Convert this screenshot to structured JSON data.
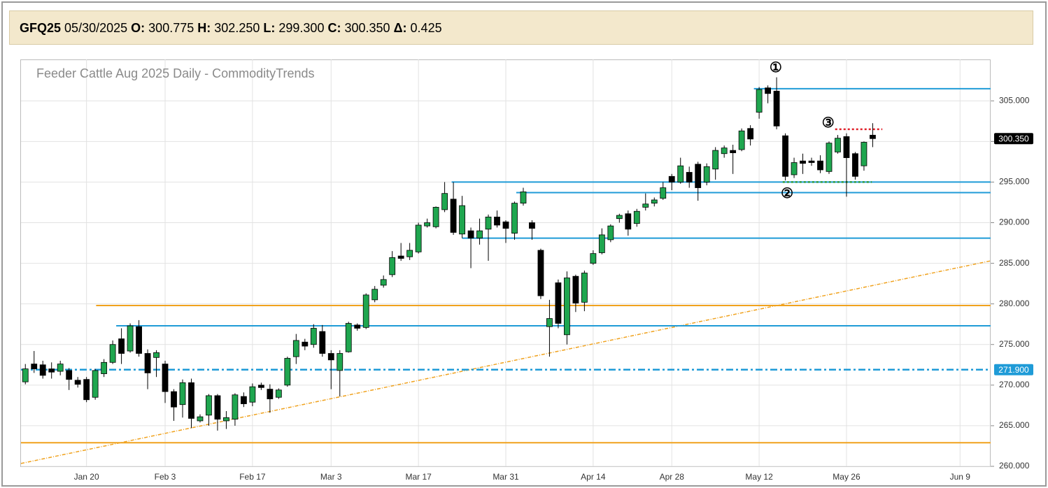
{
  "header": {
    "symbol": "GFQ25",
    "date": "05/30/2025",
    "fields": [
      {
        "label": "O:",
        "value": "300.775"
      },
      {
        "label": "H:",
        "value": "302.250"
      },
      {
        "label": "L:",
        "value": "299.300"
      },
      {
        "label": "C:",
        "value": "300.350"
      },
      {
        "label": "Δ:",
        "value": "0.425"
      }
    ]
  },
  "chart_data": {
    "type": "candlestick",
    "title": "Feeder Cattle Aug 2025 Daily - CommodityTrends",
    "categories": [
      null,
      null,
      null,
      null,
      null,
      null,
      null,
      "Jan 20",
      null,
      null,
      null,
      null,
      null,
      null,
      null,
      null,
      "Feb 3",
      null,
      null,
      null,
      null,
      null,
      null,
      null,
      null,
      null,
      "Feb 17",
      null,
      null,
      null,
      null,
      null,
      null,
      null,
      null,
      "Mar 3",
      null,
      null,
      null,
      null,
      null,
      null,
      null,
      null,
      null,
      "Mar 17",
      null,
      null,
      null,
      null,
      null,
      null,
      null,
      null,
      null,
      "Mar 31",
      null,
      null,
      null,
      null,
      null,
      null,
      null,
      null,
      null,
      "Apr 14",
      null,
      null,
      null,
      null,
      null,
      null,
      null,
      null,
      "Apr 28",
      null,
      null,
      null,
      null,
      null,
      null,
      null,
      null,
      null,
      "May 12",
      null,
      null,
      null,
      null,
      null,
      null,
      null,
      null,
      null,
      "May 26",
      null,
      null,
      null,
      null,
      null,
      null,
      null,
      null,
      null,
      null,
      null,
      null,
      "Jun 9",
      null,
      null,
      null
    ],
    "open": [
      270.4,
      272.6,
      272.5,
      272,
      271.7,
      271.8,
      270.6,
      270.7,
      268.5,
      271.4,
      272.8,
      275.7,
      274.2,
      277.2,
      273.9,
      273.4,
      272.6,
      269.2,
      267.6,
      270.3,
      265.6,
      266.3,
      268.7,
      265.6,
      265.8,
      268.6,
      267.9,
      270.0,
      269.5,
      268.5,
      270.0,
      273.5,
      275.3,
      275.0,
      276.6,
      273.9,
      271.8,
      274.1,
      277.4,
      277.1,
      280.5,
      282.3,
      283.6,
      285.9,
      285.8,
      286.4,
      289.6,
      289.5,
      291.6,
      292.9,
      288.6,
      289.0,
      288.1,
      289.2,
      290.7,
      290.1,
      288.7,
      292.4,
      290.0,
      286.6,
      277.2,
      282.6,
      276.2,
      283.4,
      280.2,
      285.0,
      286.3,
      287.9,
      290.5,
      291.1,
      289.9,
      291.9,
      292.4,
      293.0,
      295.7,
      295.0,
      296.2,
      297.2,
      295.0,
      296.6,
      298.5,
      298.9,
      299.0,
      301.6,
      303.6,
      306.6,
      306.2,
      300.7,
      295.9,
      297.6,
      297.6,
      297.6,
      296.3,
      298.7,
      300.6,
      298.5,
      297.0,
      300.775,
      null,
      null,
      null,
      null,
      null,
      null,
      null,
      null,
      null,
      null,
      null,
      null,
      null
    ],
    "high": [
      272.6,
      274.2,
      273.0,
      272.8,
      273.0,
      272.1,
      271.0,
      271.0,
      272.0,
      273.2,
      275.5,
      277.0,
      277.6,
      278.0,
      274.4,
      274.3,
      273.0,
      269.5,
      270.7,
      270.8,
      266.4,
      268.9,
      268.9,
      266.8,
      269.0,
      269.1,
      270.2,
      270.3,
      270.1,
      269.6,
      273.5,
      276.3,
      275.7,
      277.5,
      277.4,
      274.3,
      274.3,
      277.8,
      277.6,
      281.3,
      282.2,
      283.5,
      286.5,
      287.5,
      287.5,
      290.0,
      290.5,
      292.0,
      295.0,
      295.0,
      293.3,
      289.4,
      290.5,
      291.0,
      291.5,
      290.3,
      292.6,
      294.3,
      290.3,
      286.8,
      280.5,
      283.0,
      284.0,
      283.6,
      284.1,
      286.6,
      289.3,
      289.8,
      291.1,
      291.5,
      291.7,
      293.6,
      293.1,
      295.0,
      296.0,
      298.0,
      296.9,
      297.5,
      297.3,
      299.3,
      299.5,
      299.6,
      301.6,
      302.0,
      306.7,
      306.9,
      307.9,
      301.0,
      298.0,
      298.5,
      298.0,
      298.3,
      300.0,
      300.8,
      301.0,
      298.7,
      300.0,
      302.25,
      null,
      null,
      null,
      null,
      null,
      null,
      null,
      null,
      null,
      null,
      null,
      null,
      null
    ],
    "low": [
      270.1,
      271.5,
      270.8,
      270.8,
      271.2,
      269.4,
      269.7,
      267.9,
      268.2,
      271.0,
      272.6,
      272.6,
      274.0,
      273.5,
      269.5,
      271.0,
      267.8,
      265.6,
      266.0,
      264.7,
      265.4,
      265.0,
      264.4,
      264.6,
      265.0,
      267.3,
      267.4,
      269.4,
      266.6,
      268.3,
      269.8,
      272.6,
      274.3,
      274.6,
      273.5,
      269.5,
      268.6,
      274.0,
      276.7,
      276.9,
      280.2,
      282.0,
      283.3,
      285.3,
      285.4,
      286.2,
      289.4,
      289.3,
      291.3,
      288.5,
      288.1,
      284.4,
      287.3,
      285.3,
      289.4,
      287.5,
      287.9,
      292.1,
      287.9,
      280.6,
      273.5,
      277.0,
      275.0,
      279.0,
      279.1,
      284.8,
      286.1,
      287.6,
      290.0,
      288.4,
      289.5,
      291.5,
      292.0,
      292.8,
      294.0,
      294.8,
      294.3,
      292.7,
      294.6,
      295.3,
      298.0,
      296.0,
      298.8,
      299.5,
      302.8,
      304.7,
      301.5,
      295.2,
      295.5,
      296.0,
      297.0,
      296.1,
      296.0,
      298.5,
      293.2,
      295.3,
      296.4,
      299.3,
      null,
      null,
      null,
      null,
      null,
      null,
      null,
      null,
      null,
      null,
      null,
      null,
      null
    ],
    "close": [
      272.0,
      272.0,
      271.2,
      271.6,
      272.6,
      270.7,
      270.1,
      268.2,
      271.8,
      272.8,
      275.0,
      273.9,
      277.3,
      273.9,
      271.5,
      274.0,
      269.2,
      267.3,
      270.3,
      265.9,
      266.1,
      268.7,
      265.8,
      266.0,
      268.8,
      267.7,
      269.8,
      269.7,
      268.3,
      269.4,
      273.3,
      275.5,
      274.8,
      277.0,
      273.9,
      273.1,
      273.9,
      277.6,
      277.0,
      281.1,
      281.8,
      283.0,
      285.7,
      285.6,
      286.6,
      289.7,
      290.0,
      291.9,
      293.6,
      288.8,
      292.1,
      288.1,
      289.0,
      290.7,
      289.7,
      289.3,
      292.4,
      293.8,
      289.3,
      281.0,
      278.2,
      277.6,
      283.2,
      280.1,
      283.8,
      286.2,
      288.5,
      289.6,
      290.9,
      289.2,
      291.4,
      292.3,
      292.8,
      294.3,
      295.0,
      297.0,
      295.0,
      294.3,
      296.9,
      298.9,
      299.2,
      298.6,
      301.3,
      300.3,
      306.4,
      305.9,
      301.9,
      295.7,
      297.4,
      297.3,
      297.4,
      296.5,
      299.8,
      300.4,
      298.0,
      295.7,
      299.9,
      300.35,
      null,
      null,
      null,
      null,
      null,
      null,
      null,
      null,
      null,
      null,
      null,
      null,
      null
    ],
    "up_color": "#1fa64f",
    "down_color": "#000000",
    "ylim": [
      260,
      310.1
    ],
    "yticks": [
      {
        "value": 260,
        "label": "260.000"
      },
      {
        "value": 265,
        "label": "265.000"
      },
      {
        "value": 270,
        "label": "270.000"
      },
      {
        "value": 275,
        "label": "275.000"
      },
      {
        "value": 280,
        "label": "280.000"
      },
      {
        "value": 285,
        "label": "285.000"
      },
      {
        "value": 290,
        "label": "290.000"
      },
      {
        "value": 295,
        "label": "295.000"
      },
      {
        "value": 300,
        "label": "300.000"
      },
      {
        "value": 305,
        "label": "305.000"
      }
    ],
    "grid": true,
    "hlines": [
      {
        "value": 306.5,
        "from": 83.4,
        "color": "#1f9bd7",
        "style": "solid"
      },
      {
        "value": 295.0,
        "from": 48.8,
        "color": "#1f9bd7",
        "style": "solid"
      },
      {
        "value": 293.7,
        "from": 56.2,
        "color": "#1f9bd7",
        "style": "solid"
      },
      {
        "value": 288.1,
        "from": 50.0,
        "color": "#1f9bd7",
        "style": "solid"
      },
      {
        "value": 277.3,
        "from": 10.4,
        "color": "#1f9bd7",
        "style": "solid"
      },
      {
        "value": 279.8,
        "from": 8.1,
        "color": "#f0a21e",
        "style": "solid"
      },
      {
        "value": 262.9,
        "color": "#f0a21e",
        "style": "solid"
      },
      {
        "value": 271.9,
        "color": "#1f9bd7",
        "style": "dashdot",
        "label": "271.900"
      },
      {
        "value": 301.5,
        "from": 92.7,
        "to": 98.1,
        "color": "#e0202a",
        "style": "dotted"
      },
      {
        "value": 295.0,
        "from": 86.7,
        "to": 96.9,
        "color": "#2e9a3a",
        "style": "dotted"
      }
    ],
    "trendline": {
      "x": [
        -0.5,
        110.5
      ],
      "y": [
        260.35,
        285.3
      ],
      "color": "#f0a21e"
    },
    "markers": [
      {
        "label": "①",
        "x": 85.9,
        "y": 309.0
      },
      {
        "label": "②",
        "x": 87.2,
        "y": 293.5
      },
      {
        "label": "③",
        "x": 91.9,
        "y": 302.2
      }
    ],
    "price_tag": {
      "value": 300.35,
      "label": "300.350",
      "color": "#000000"
    }
  }
}
